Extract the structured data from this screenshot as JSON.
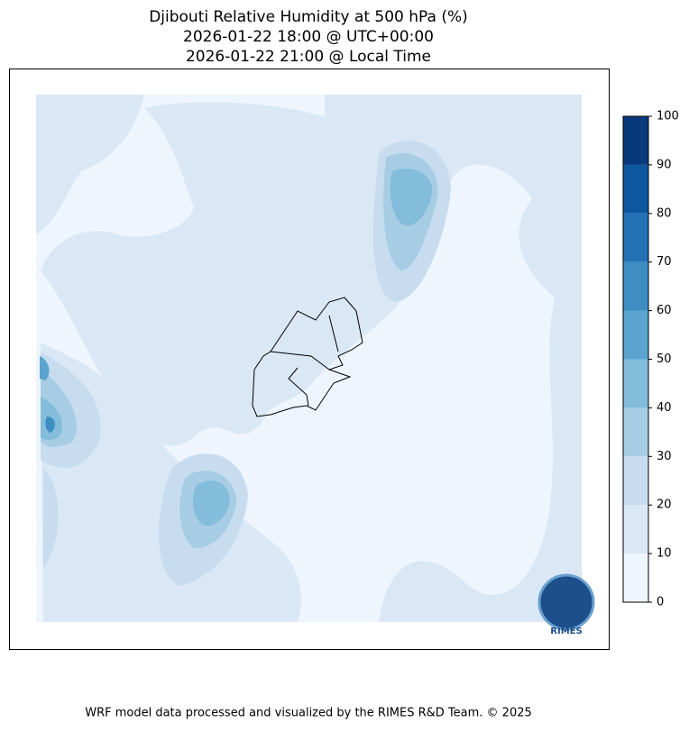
{
  "title": [
    "Djibouti Relative Humidity at 500 hPa (%)",
    "2026-01-22 18:00 @ UTC+00:00",
    "2026-01-22 21:00 @ Local Time"
  ],
  "colorbar": {
    "levels": [
      0,
      10,
      20,
      30,
      40,
      50,
      60,
      70,
      80,
      90,
      100
    ],
    "colors": [
      "#eef5fc",
      "#dae8f5",
      "#c7dcef",
      "#a6cde4",
      "#84bcdb",
      "#5ca4d0",
      "#3e8ec4",
      "#2272b5",
      "#0d57a1",
      "#083a7b"
    ]
  },
  "logo": "RIMES",
  "footer": "WRF model data processed and visualized by the RIMES R&D Team. © 2025"
}
